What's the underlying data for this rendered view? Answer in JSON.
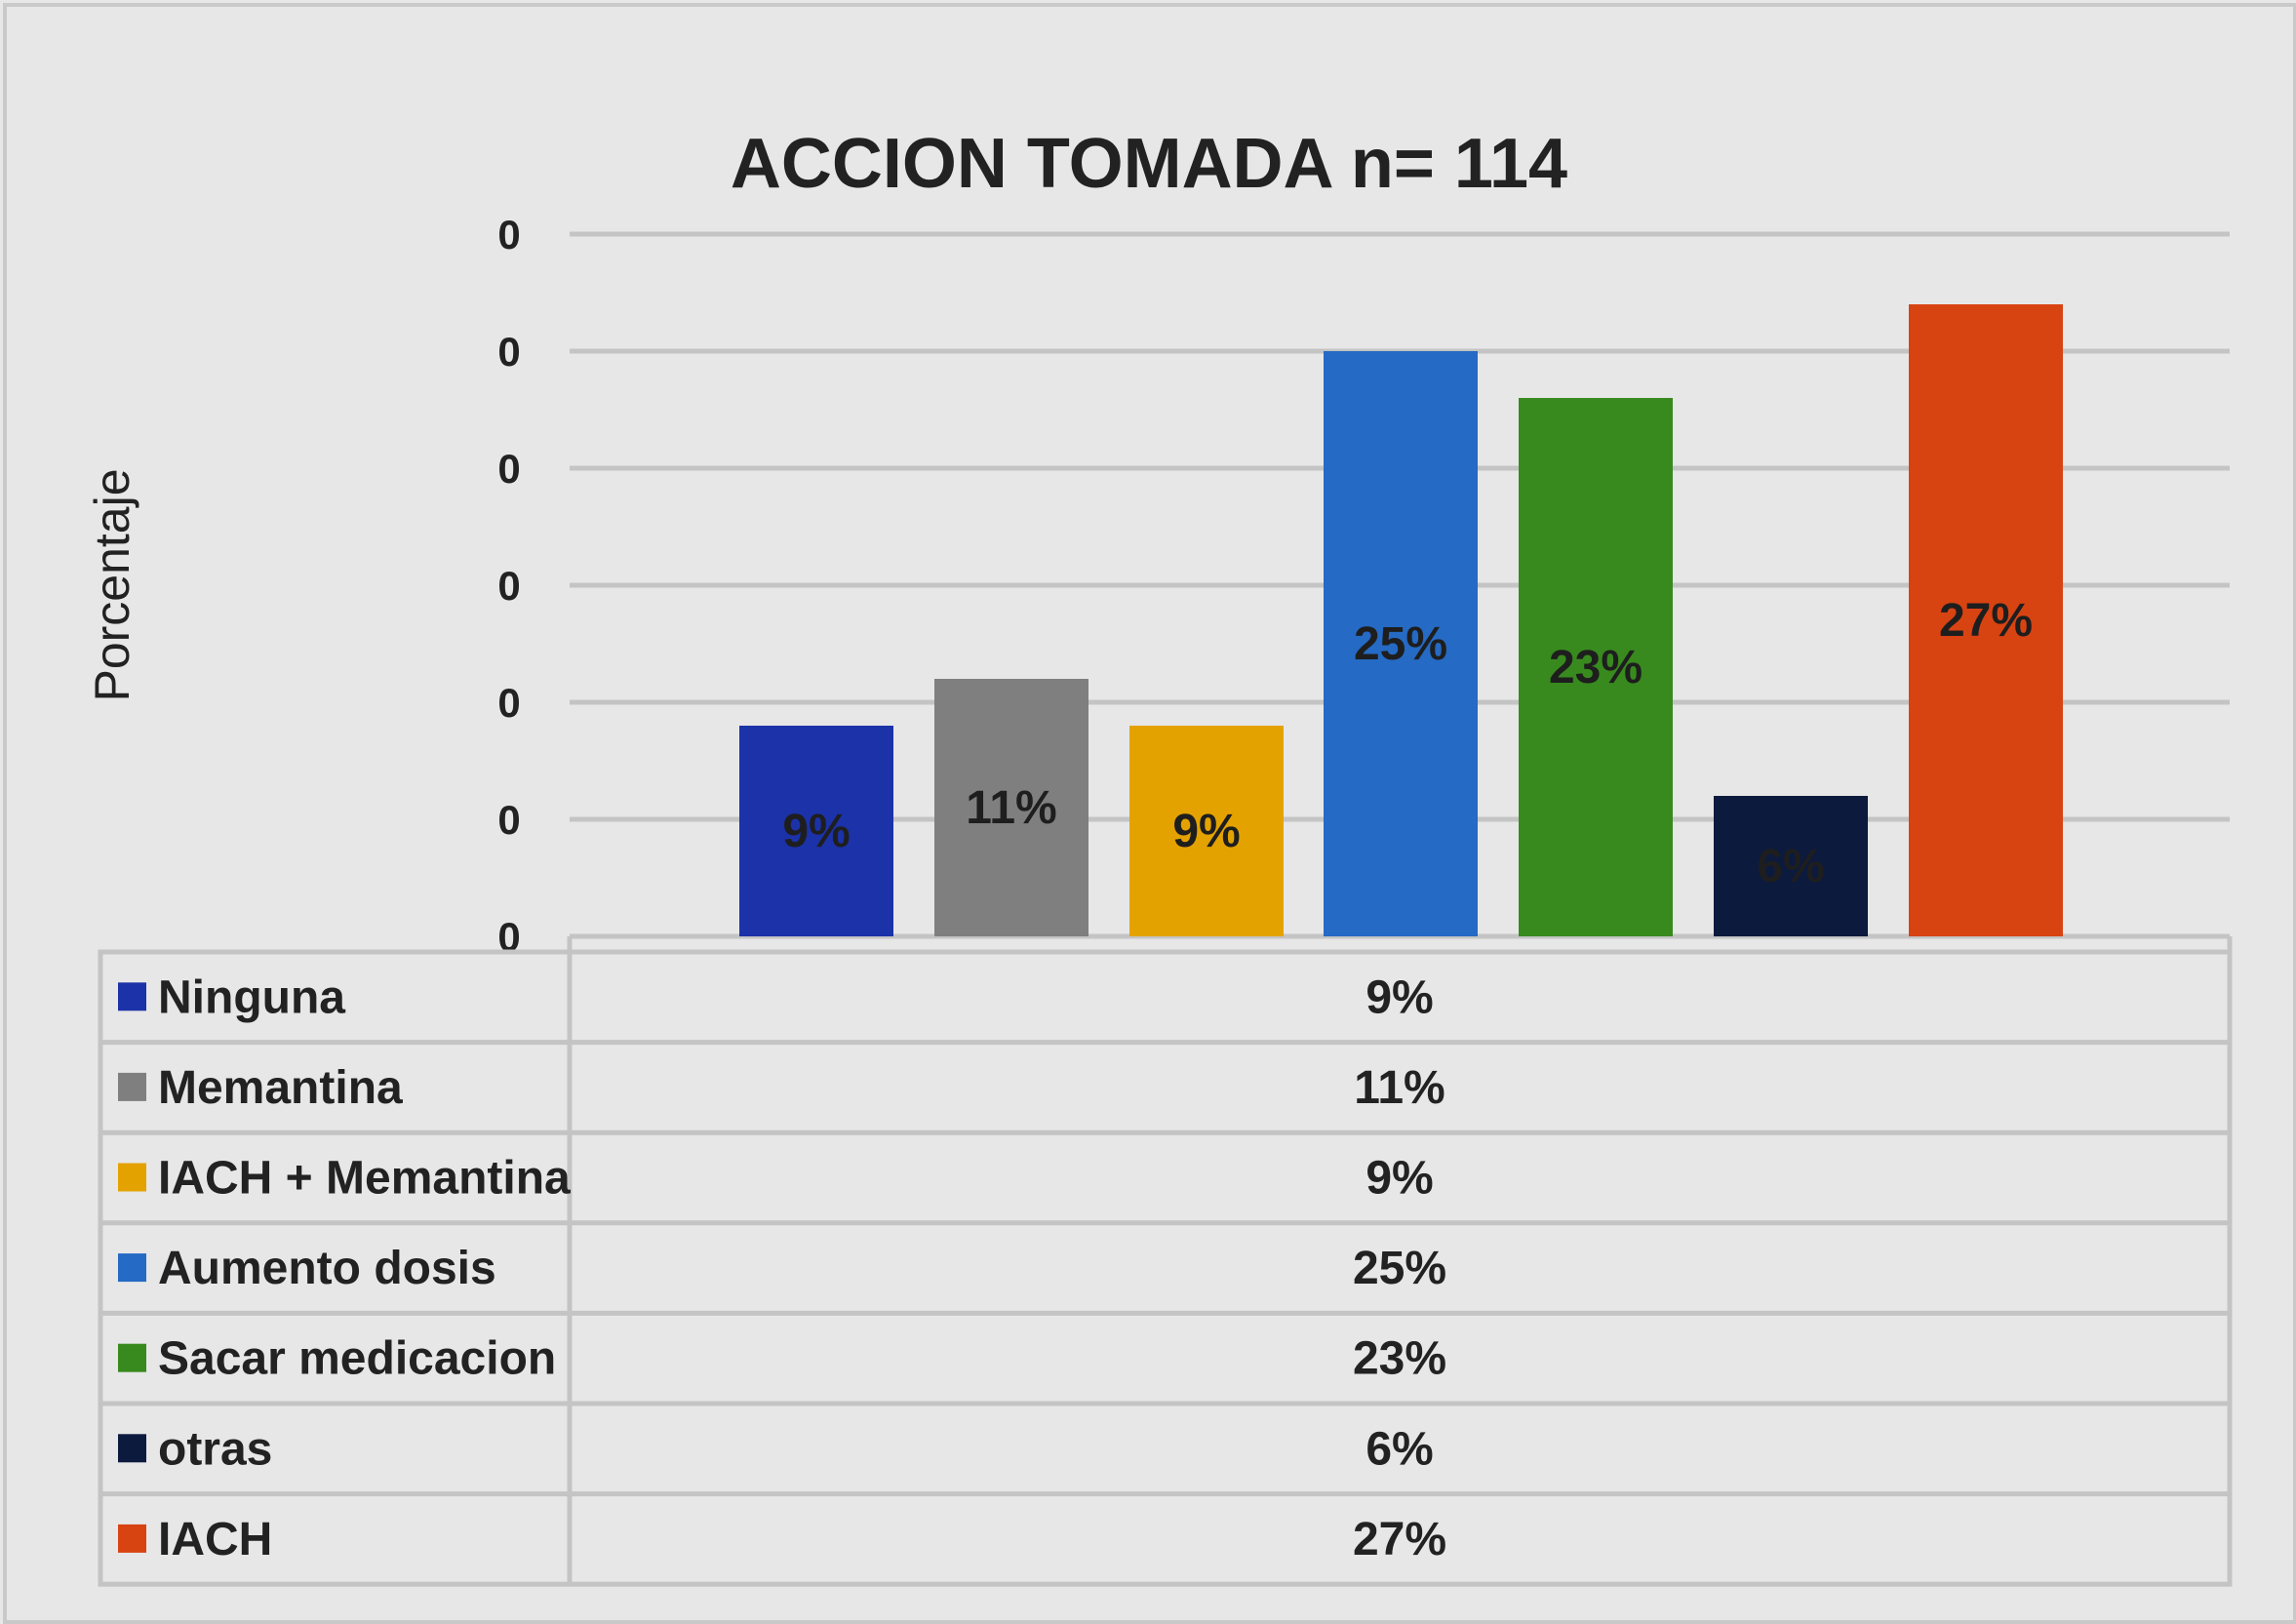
{
  "chart_data": {
    "type": "bar",
    "title": "ACCION TOMADA n= 114",
    "ylabel": "Porcentaje",
    "xlabel": "",
    "y_tick_labels": [
      "0",
      "0",
      "0",
      "0",
      "0",
      "0",
      "0"
    ],
    "ylim": [
      0,
      0.3
    ],
    "grid": true,
    "legend": "data-table-below",
    "categories": [
      "Ninguna",
      "Memantina",
      "IACH + Memantina",
      "Aumento dosis",
      "Sacar medicacion",
      "otras",
      "IACH"
    ],
    "values": [
      0.09,
      0.11,
      0.09,
      0.25,
      0.23,
      0.06,
      0.27
    ],
    "value_labels": [
      "9%",
      "11%",
      "9%",
      "25%",
      "23%",
      "6%",
      "27%"
    ],
    "colors": [
      "#1b32a8",
      "#7f7f7f",
      "#e4a200",
      "#256ac4",
      "#388a1e",
      "#0c1a3e",
      "#d84312"
    ]
  }
}
